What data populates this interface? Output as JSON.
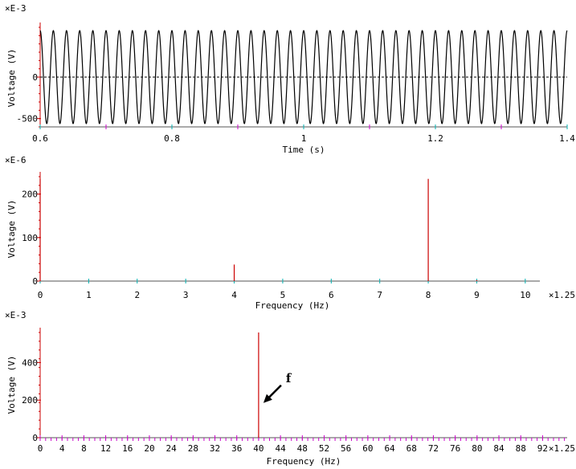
{
  "chart_data": [
    {
      "type": "line",
      "scale_label": "×E-3",
      "xlabel": "Time (s)",
      "ylabel": "Voltage (V)",
      "xlim": [
        0.6,
        1.4
      ],
      "ylim": [
        -600,
        600
      ],
      "x_ticks": [
        0.6,
        0.8,
        1,
        1.2,
        1.4
      ],
      "x_tick_labels": [
        "0.6",
        "0.8",
        "1",
        "1.2",
        "1.4"
      ],
      "y_ticks": [
        -500,
        0
      ],
      "y_tick_labels": [
        "-500",
        "0"
      ],
      "series": [
        {
          "frequency_hz": 50,
          "amplitude": 560,
          "offset": 0
        }
      ],
      "reference_line": 0,
      "grid": false,
      "colors": {
        "trace": "#000000",
        "axis": "#cc0000",
        "minor_tick": "#00b0b0",
        "major_tick": "#cc00cc"
      }
    },
    {
      "type": "bar",
      "scale_label": "×E-6",
      "xlabel": "Frequency (Hz)",
      "ylabel": "Voltage (V)",
      "x_multiplier": "×1.25",
      "xlim": [
        0,
        10.4
      ],
      "ylim": [
        0,
        240
      ],
      "x_ticks": [
        0,
        1,
        2,
        3,
        4,
        5,
        6,
        7,
        8,
        9,
        10
      ],
      "x_tick_labels": [
        "0",
        "1",
        "2",
        "3",
        "4",
        "5",
        "6",
        "7",
        "8",
        "9",
        "10"
      ],
      "y_ticks": [
        0,
        100,
        200
      ],
      "y_tick_labels": [
        "0",
        "100",
        "200"
      ],
      "bars": [
        {
          "x": 0,
          "value": 235
        },
        {
          "x": 4,
          "value": 38
        },
        {
          "x": 8,
          "value": 235
        },
        {
          "x": 9,
          "value": 2
        }
      ],
      "grid": false,
      "colors": {
        "bar": "#cc0000",
        "axis": "#cc0000",
        "minor_tick": "#00b0b0"
      }
    },
    {
      "type": "bar",
      "scale_label": "×E-3",
      "xlabel": "Frequency (Hz)",
      "ylabel": "Voltage (V)",
      "x_multiplier": "×1.25",
      "xlim": [
        0,
        96.5
      ],
      "ylim": [
        0,
        560
      ],
      "x_ticks": [
        0,
        4,
        8,
        12,
        16,
        20,
        24,
        28,
        32,
        36,
        40,
        44,
        48,
        52,
        56,
        60,
        64,
        68,
        72,
        76,
        80,
        84,
        88,
        92
      ],
      "x_tick_labels": [
        "0",
        "4",
        "8",
        "12",
        "16",
        "20",
        "24",
        "28",
        "32",
        "36",
        "40",
        "44",
        "48",
        "52",
        "56",
        "60",
        "64",
        "68",
        "72",
        "76",
        "80",
        "84",
        "88",
        "92"
      ],
      "y_ticks": [
        0,
        200,
        400
      ],
      "y_tick_labels": [
        "0",
        "200",
        "400"
      ],
      "bars": [
        {
          "x": 40,
          "value": 560
        }
      ],
      "annotation": {
        "text": "f",
        "points_to_x": 40
      },
      "grid": false,
      "colors": {
        "bar": "#cc0000",
        "axis": "#cc0000",
        "minor_tick": "#cc00cc"
      }
    }
  ]
}
